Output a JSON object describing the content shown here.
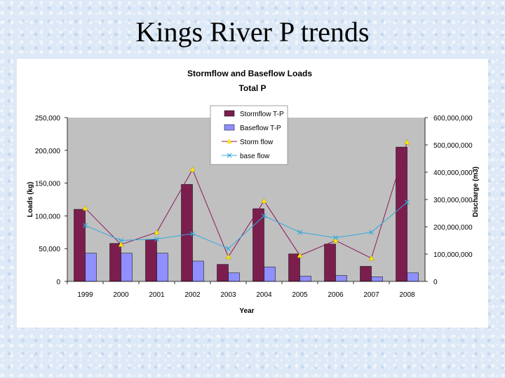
{
  "slide": {
    "title": "Kings River P trends"
  },
  "colors": {
    "stormflow_bar": "#7b1e4e",
    "baseflow_bar": "#8f8fff",
    "storm_flow_line": "#8b1a5a",
    "storm_flow_marker": "#ffe800",
    "base_flow_line": "#33aadd",
    "plot_bg": "#c0c0c0"
  },
  "chart_data": {
    "type": "bar",
    "title": "Stormflow and Baseflow Loads",
    "subtitle": "Total P",
    "xlabel": "Year",
    "ylabel": "Loads (kg)",
    "y2label": "Discharge (m3)",
    "categories": [
      "1999",
      "2000",
      "2001",
      "2002",
      "2003",
      "2004",
      "2005",
      "2006",
      "2007",
      "2008"
    ],
    "ylim": [
      0,
      250000
    ],
    "y2lim": [
      0,
      600000000
    ],
    "yticks": [
      "0",
      "50,000",
      "100,000",
      "150,000",
      "200,000",
      "250,000"
    ],
    "y2ticks": [
      "0",
      "100,000,000",
      "200,000,000",
      "300,000,000",
      "400,000,000",
      "500,000,000",
      "600,000,000"
    ],
    "legend_position": "top-center",
    "grid": false,
    "series": [
      {
        "name": "Stormflow T-P",
        "type": "bar",
        "axis": "left",
        "values": [
          110000,
          58000,
          64000,
          148000,
          26000,
          111000,
          42000,
          57000,
          23000,
          205000
        ]
      },
      {
        "name": "Baseflow T-P",
        "type": "bar",
        "axis": "left",
        "values": [
          43000,
          43000,
          43000,
          31000,
          13000,
          22000,
          8000,
          9000,
          7000,
          13000
        ]
      },
      {
        "name": "Storm flow",
        "type": "line",
        "axis": "right",
        "marker": "triangle",
        "values": [
          268000000,
          135000000,
          180000000,
          410000000,
          90000000,
          295000000,
          95000000,
          150000000,
          85000000,
          510000000
        ]
      },
      {
        "name": "base flow",
        "type": "line",
        "axis": "right",
        "marker": "x",
        "values": [
          205000000,
          150000000,
          155000000,
          175000000,
          120000000,
          240000000,
          180000000,
          160000000,
          180000000,
          290000000
        ]
      }
    ]
  }
}
